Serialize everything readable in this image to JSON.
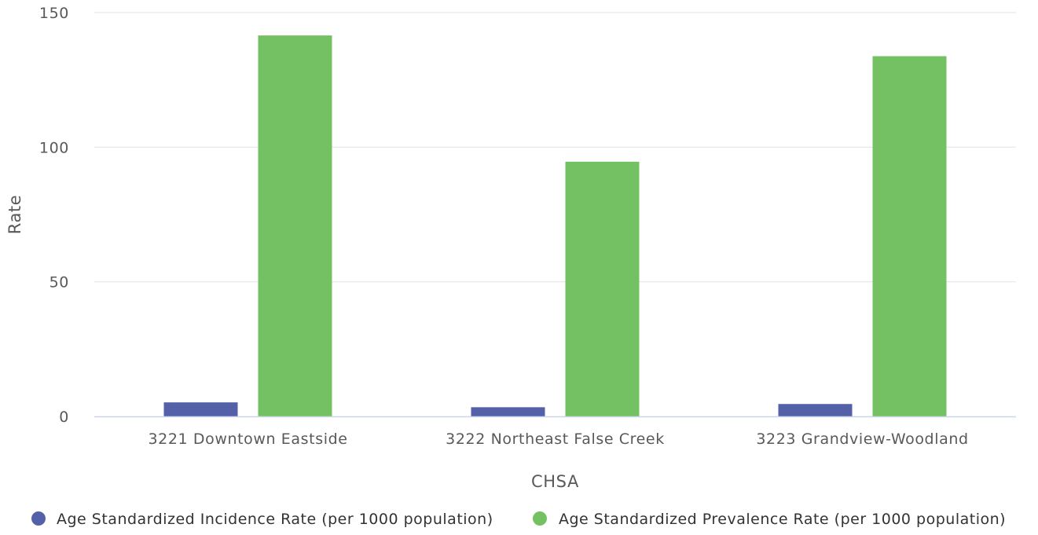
{
  "colors": {
    "incidence": "#5461a8",
    "prevalence": "#74c163"
  },
  "chart_data": {
    "type": "bar",
    "title": "",
    "xlabel": "CHSA",
    "ylabel": "Rate",
    "ylim": [
      0,
      150
    ],
    "yticks": [
      0,
      50,
      100,
      150
    ],
    "grid": true,
    "legend_position": "bottom",
    "categories": [
      "3221 Downtown Eastside",
      "3222 Northeast False Creek",
      "3223 Grandview-Woodland"
    ],
    "series": [
      {
        "name": "Age Standardized Incidence Rate (per 1000 population)",
        "color": "#5461a8",
        "values": [
          5.2,
          3.4,
          4.6
        ]
      },
      {
        "name": "Age Standardized Prevalence Rate (per 1000 population)",
        "color": "#74c163",
        "values": [
          141.5,
          94.6,
          133.8
        ]
      }
    ]
  }
}
